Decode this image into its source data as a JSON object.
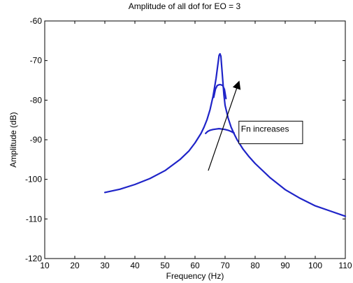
{
  "chart_data": {
    "type": "line",
    "title": "Amplitude of all dof for EO = 3",
    "xlabel": "Frequency (Hz)",
    "ylabel": "Amplitude (dB)",
    "xlim": [
      10,
      110
    ],
    "ylim": [
      -120,
      -60
    ],
    "xticks": [
      10,
      20,
      30,
      40,
      50,
      60,
      70,
      80,
      90,
      100,
      110
    ],
    "yticks": [
      -60,
      -70,
      -80,
      -90,
      -100,
      -110,
      -120
    ],
    "grid": false,
    "line_color": "#1f24c8",
    "series": [
      {
        "x": [
          30,
          35,
          40,
          45,
          50,
          55,
          58,
          60,
          62,
          63,
          64,
          65,
          66,
          67,
          67.5,
          68,
          68.3,
          68.6,
          68.9,
          69.2,
          69.6,
          70,
          71,
          72,
          73,
          74,
          76,
          78,
          80,
          85,
          90,
          95,
          100,
          105,
          110
        ],
        "values": [
          -103.3,
          -102.5,
          -101.3,
          -99.8,
          -97.8,
          -95.0,
          -92.8,
          -90.8,
          -88.4,
          -86.8,
          -84.9,
          -82.4,
          -79.0,
          -74.5,
          -71.5,
          -68.7,
          -68.3,
          -68.9,
          -71.8,
          -74.8,
          -78.6,
          -81.3,
          -84.5,
          -86.8,
          -88.5,
          -90.0,
          -92.4,
          -94.3,
          -96.0,
          -99.6,
          -102.6,
          -104.8,
          -106.7,
          -108.0,
          -109.3
        ]
      },
      {
        "x": [
          66.2,
          66.8,
          67.4,
          68.0,
          68.6,
          69.2,
          69.8,
          70.3
        ],
        "values": [
          -79.3,
          -77.2,
          -76.3,
          -76.1,
          -76.1,
          -76.3,
          -77.3,
          -79.6
        ]
      },
      {
        "x": [
          63.5,
          64.2,
          65,
          66,
          67,
          68,
          69,
          70,
          71,
          72,
          73
        ],
        "values": [
          -88.4,
          -87.9,
          -87.6,
          -87.4,
          -87.3,
          -87.2,
          -87.3,
          -87.4,
          -87.6,
          -87.9,
          -88.3
        ]
      }
    ],
    "annotations": [
      {
        "text": "Fn increases"
      }
    ],
    "arrow": {
      "from": [
        64.4,
        -97.8
      ],
      "to": [
        74.6,
        -75.4
      ]
    },
    "text_box": {
      "x_range": [
        74.6,
        95.8
      ],
      "y_range": [
        -85.3,
        -91.0
      ]
    }
  }
}
